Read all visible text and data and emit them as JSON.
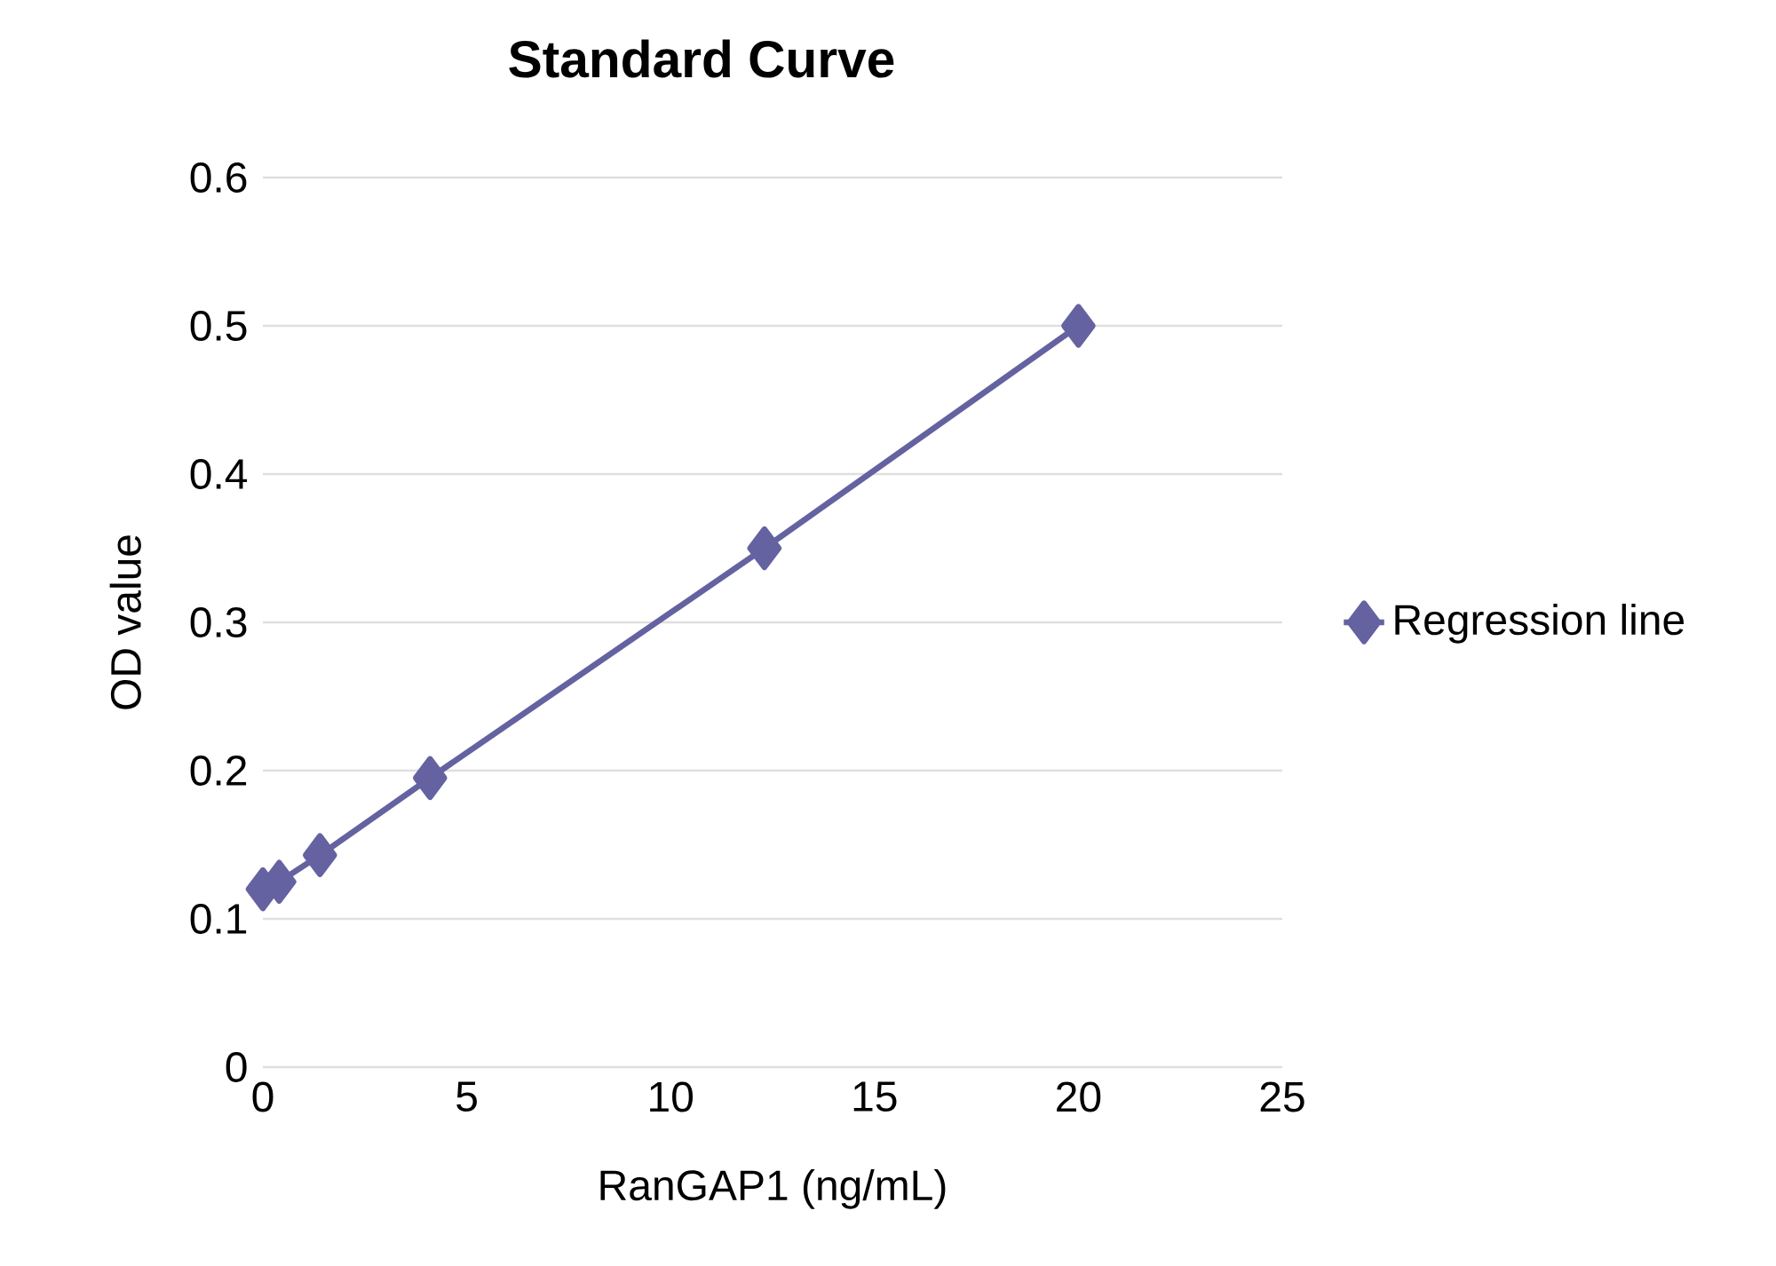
{
  "chart_data": {
    "type": "line",
    "title": "Standard Curve",
    "xlabel": "RanGAP1 (ng/mL)",
    "ylabel": "OD value",
    "series": [
      {
        "name": "Regression line",
        "color": "#6462a0",
        "x": [
          0,
          0.4,
          1.4,
          4.1,
          12.3,
          20
        ],
        "values": [
          0.12,
          0.125,
          0.143,
          0.195,
          0.35,
          0.5
        ]
      }
    ],
    "xlim": [
      0,
      25
    ],
    "ylim": [
      0,
      0.6
    ],
    "xticks": [
      0,
      5,
      10,
      15,
      20,
      25
    ],
    "yticks": [
      0,
      0.1,
      0.2,
      0.3,
      0.4,
      0.5,
      0.6
    ],
    "grid": "y",
    "legend": "right",
    "marker": "diamond",
    "line_style": "solid"
  }
}
